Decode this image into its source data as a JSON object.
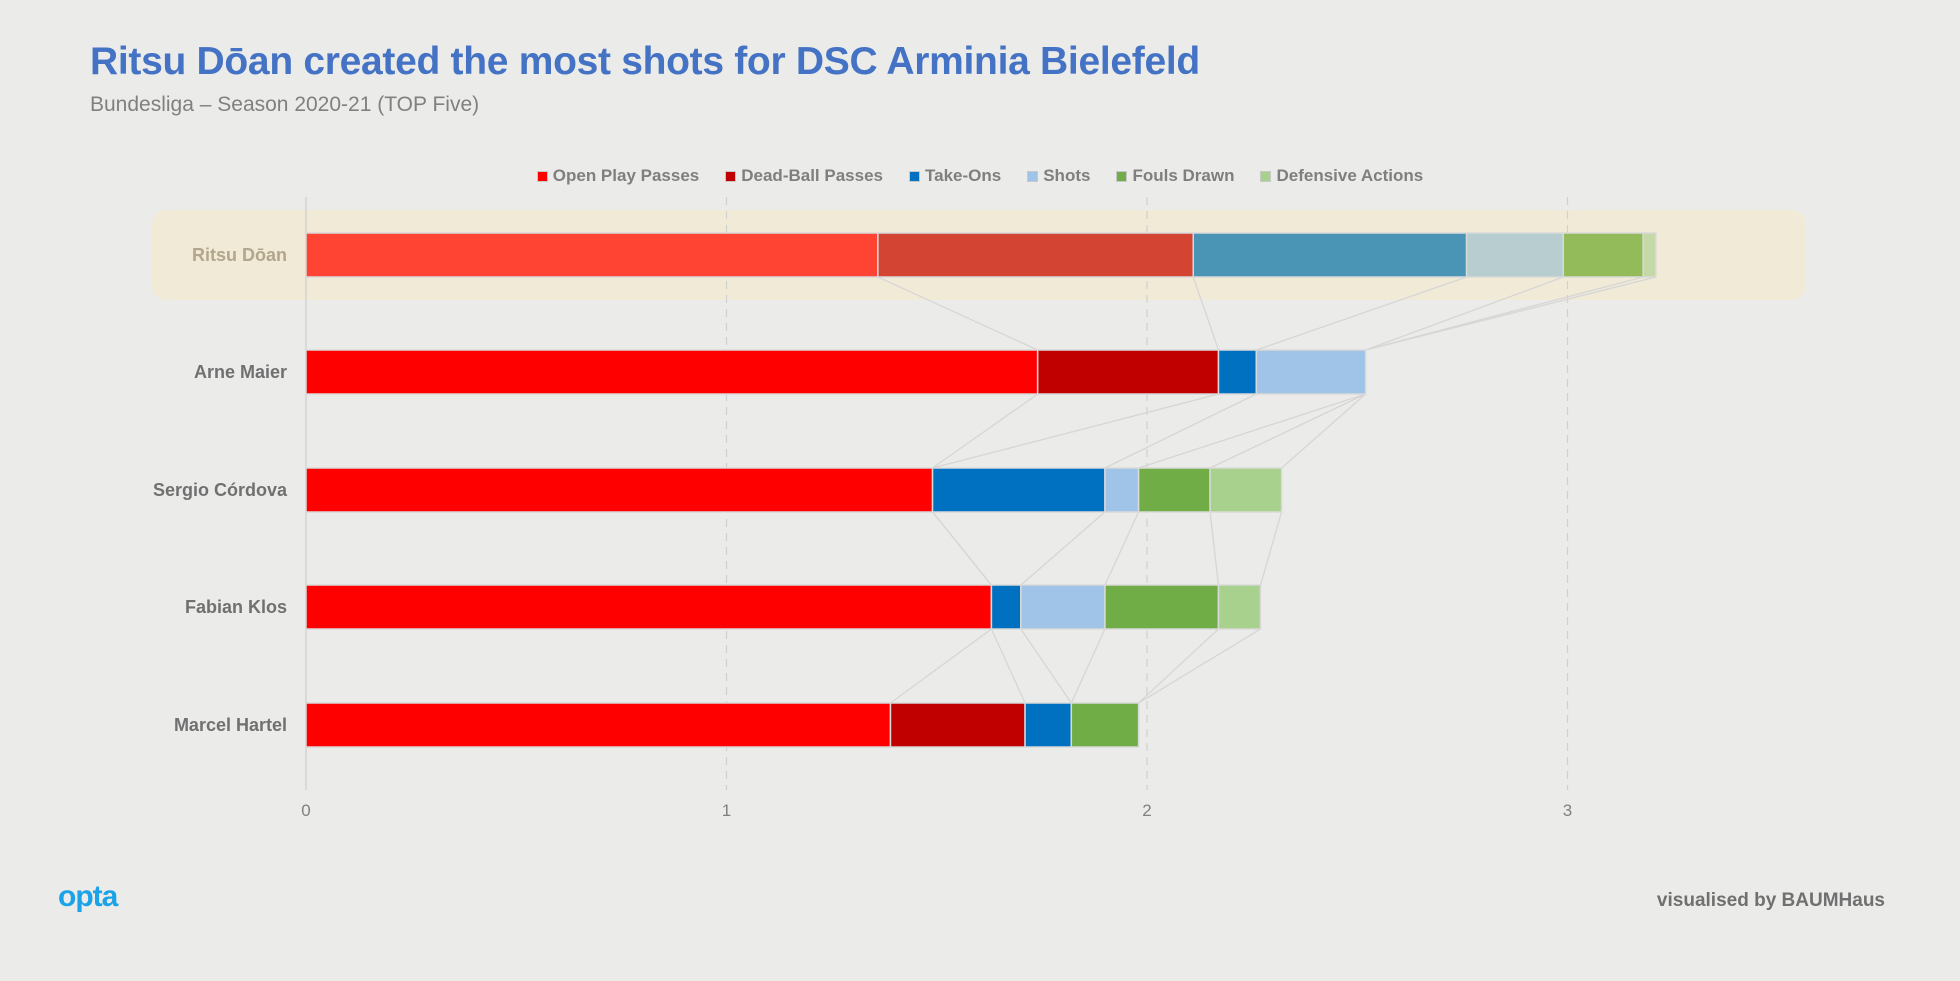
{
  "header": {
    "title": "Ritsu Dōan created the most shots for DSC Arminia Bielefeld",
    "subtitle": "Bundesliga – Season 2020-21 (TOP Five)"
  },
  "footer": {
    "logo": "opta",
    "credit": "visualised by BAUMHaus"
  },
  "chart_data": {
    "type": "bar",
    "orientation": "horizontal",
    "stacked": true,
    "title": "Ritsu Dōan created the most shots for DSC Arminia Bielefeld",
    "subtitle": "Bundesliga – Season 2020-21 (TOP Five)",
    "xlabel": "",
    "ylabel": "",
    "xlim": [
      0,
      3.5
    ],
    "xticks": [
      0,
      1,
      2,
      3
    ],
    "grid": "vertical dashed",
    "legend_position": "top-center",
    "highlighted_category": "Ritsu Dōan",
    "categories": [
      "Ritsu Dōan",
      "Arne Maier",
      "Sergio Córdova",
      "Fabian Klos",
      "Marcel Hartel"
    ],
    "series": [
      {
        "name": "Open Play Passes",
        "color": "#ff0000",
        "highlight_color": "#ff4433",
        "values": [
          1.36,
          1.74,
          1.49,
          1.63,
          1.39
        ]
      },
      {
        "name": "Dead-Ball Passes",
        "color": "#c00000",
        "highlight_color": "#d44433",
        "values": [
          0.75,
          0.43,
          0.0,
          0.0,
          0.32
        ]
      },
      {
        "name": "Take-Ons",
        "color": "#0070c0",
        "highlight_color": "#4a95b5",
        "values": [
          0.65,
          0.09,
          0.41,
          0.07,
          0.11
        ]
      },
      {
        "name": "Shots",
        "color": "#a0c4e8",
        "highlight_color": "#b8cdcf",
        "values": [
          0.23,
          0.26,
          0.08,
          0.2,
          0.0
        ]
      },
      {
        "name": "Fouls Drawn",
        "color": "#70ad47",
        "highlight_color": "#94bb5a",
        "values": [
          0.19,
          0.0,
          0.17,
          0.27,
          0.16
        ]
      },
      {
        "name": "Defensive Actions",
        "color": "#a9d18e",
        "highlight_color": "#c5d9a8",
        "values": [
          0.03,
          0.0,
          0.17,
          0.1,
          0.0
        ]
      }
    ]
  }
}
